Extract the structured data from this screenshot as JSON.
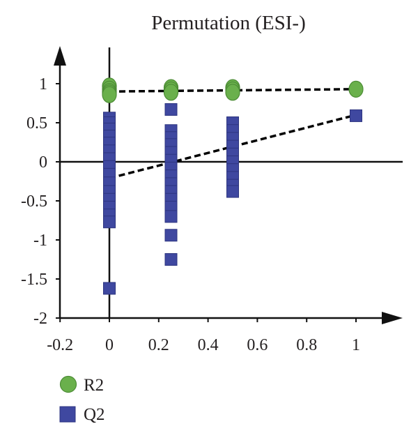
{
  "chart_data": {
    "type": "scatter",
    "title": "Permutation (ESI-)",
    "xlabel": "",
    "ylabel": "",
    "xlim": [
      -0.2,
      1.2
    ],
    "ylim": [
      -2,
      1.3
    ],
    "x_ticks": [
      {
        "value": -0.2,
        "label": "-0.2"
      },
      {
        "value": 0,
        "label": "0"
      },
      {
        "value": 0.2,
        "label": "0.2"
      },
      {
        "value": 0.4,
        "label": "0.4"
      },
      {
        "value": 0.6,
        "label": "0.6"
      },
      {
        "value": 0.8,
        "label": "0.8"
      },
      {
        "value": 1,
        "label": "1"
      }
    ],
    "y_ticks": [
      {
        "value": 1,
        "label": "1"
      },
      {
        "value": 0.5,
        "label": "0.5"
      },
      {
        "value": 0,
        "label": "0"
      },
      {
        "value": -0.5,
        "label": "-0.5"
      },
      {
        "value": -1,
        "label": "-1"
      },
      {
        "value": -1.5,
        "label": "-1.5"
      },
      {
        "value": -2,
        "label": "-2"
      }
    ],
    "grid": false,
    "legend_position": "bottom-left",
    "series": [
      {
        "name": "R2",
        "marker": "circle",
        "color": "#6ab04c",
        "edge_color": "#4c8c35",
        "points": [
          {
            "x": 0,
            "y": 0.97
          },
          {
            "x": 0,
            "y": 0.93
          },
          {
            "x": 0,
            "y": 0.9
          },
          {
            "x": 0,
            "y": 0.88
          },
          {
            "x": 0,
            "y": 0.86
          },
          {
            "x": 0.25,
            "y": 0.95
          },
          {
            "x": 0.25,
            "y": 0.92
          },
          {
            "x": 0.25,
            "y": 0.89
          },
          {
            "x": 0.5,
            "y": 0.95
          },
          {
            "x": 0.5,
            "y": 0.92
          },
          {
            "x": 0.5,
            "y": 0.89
          },
          {
            "x": 1,
            "y": 0.93
          }
        ]
      },
      {
        "name": "Q2",
        "marker": "square",
        "color": "#3f48a0",
        "edge_color": "#2d3580",
        "points": [
          {
            "x": 0,
            "y": 0.56
          },
          {
            "x": 0,
            "y": 0.5
          },
          {
            "x": 0,
            "y": 0.42
          },
          {
            "x": 0,
            "y": 0.33
          },
          {
            "x": 0,
            "y": 0.24
          },
          {
            "x": 0,
            "y": 0.14
          },
          {
            "x": 0,
            "y": 0.04
          },
          {
            "x": 0,
            "y": -0.06
          },
          {
            "x": 0,
            "y": -0.16
          },
          {
            "x": 0,
            "y": -0.27
          },
          {
            "x": 0,
            "y": -0.38
          },
          {
            "x": 0,
            "y": -0.48
          },
          {
            "x": 0,
            "y": -0.58
          },
          {
            "x": 0,
            "y": -0.68
          },
          {
            "x": 0,
            "y": -0.77
          },
          {
            "x": 0,
            "y": -1.62
          },
          {
            "x": 0.25,
            "y": 0.67
          },
          {
            "x": 0.25,
            "y": 0.4
          },
          {
            "x": 0.25,
            "y": 0.31
          },
          {
            "x": 0.25,
            "y": 0.22
          },
          {
            "x": 0.25,
            "y": 0.12
          },
          {
            "x": 0.25,
            "y": 0.02
          },
          {
            "x": 0.25,
            "y": -0.08
          },
          {
            "x": 0.25,
            "y": -0.18
          },
          {
            "x": 0.25,
            "y": -0.28
          },
          {
            "x": 0.25,
            "y": -0.38
          },
          {
            "x": 0.25,
            "y": -0.48
          },
          {
            "x": 0.25,
            "y": -0.58
          },
          {
            "x": 0.25,
            "y": -0.7
          },
          {
            "x": 0.25,
            "y": -0.94
          },
          {
            "x": 0.25,
            "y": -1.25
          },
          {
            "x": 0.5,
            "y": 0.5
          },
          {
            "x": 0.5,
            "y": 0.4
          },
          {
            "x": 0.5,
            "y": 0.3
          },
          {
            "x": 0.5,
            "y": 0.2
          },
          {
            "x": 0.5,
            "y": 0.1
          },
          {
            "x": 0.5,
            "y": 0.0
          },
          {
            "x": 0.5,
            "y": -0.1
          },
          {
            "x": 0.5,
            "y": -0.2
          },
          {
            "x": 0.5,
            "y": -0.3
          },
          {
            "x": 0.5,
            "y": -0.38
          },
          {
            "x": 1,
            "y": 0.59
          }
        ]
      }
    ],
    "trend_lines": [
      {
        "series": "R2",
        "style": "dashed",
        "color": "#000000",
        "from": {
          "x": 0,
          "y": 0.9
        },
        "to": {
          "x": 1,
          "y": 0.93
        }
      },
      {
        "series": "Q2",
        "style": "dashed",
        "color": "#000000",
        "from": {
          "x": 0,
          "y": -0.21
        },
        "to": {
          "x": 1,
          "y": 0.6
        }
      }
    ]
  }
}
